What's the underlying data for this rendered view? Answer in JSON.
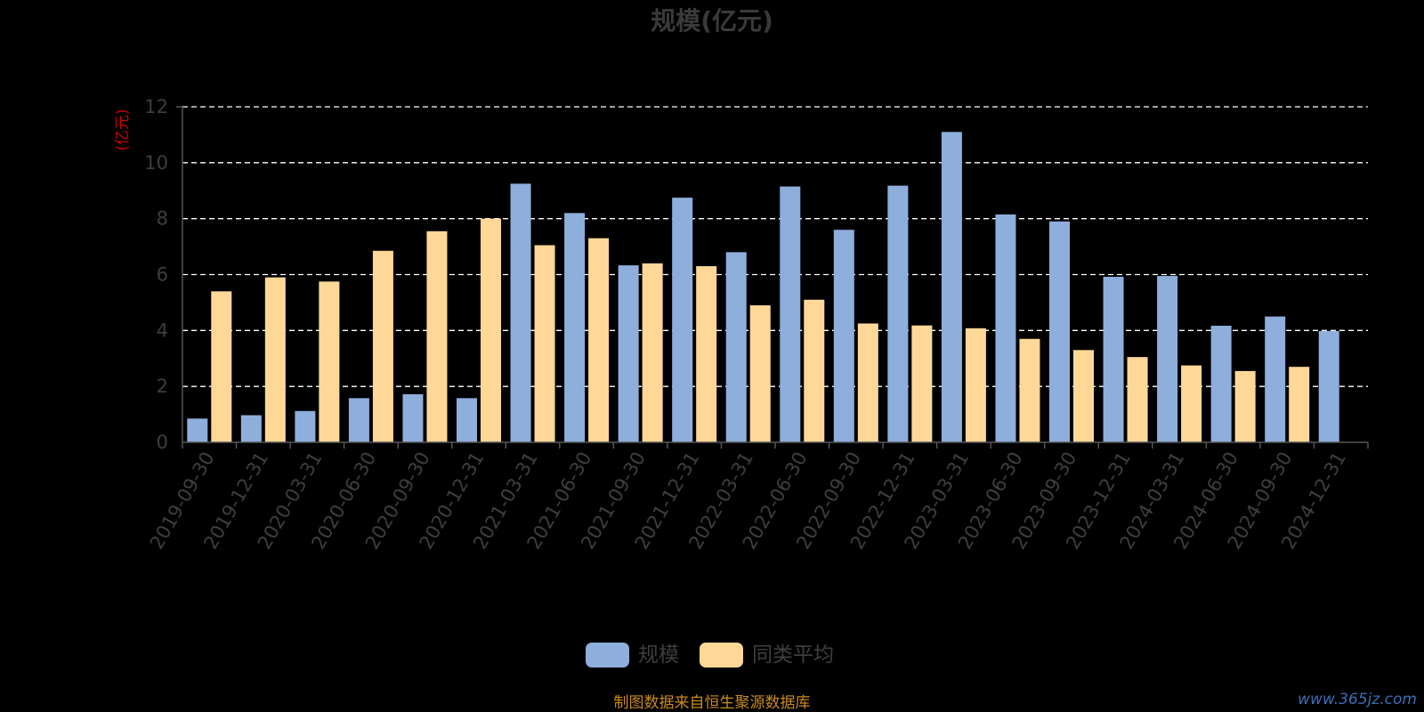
{
  "chart_data": {
    "type": "bar",
    "title": "规模(亿元)",
    "ylabel": "(亿元)",
    "ylim": [
      0,
      12
    ],
    "yticks": [
      0,
      2,
      4,
      6,
      8,
      10,
      12
    ],
    "grid": true,
    "legend_position": "bottom-center",
    "categories": [
      "2019-09-30",
      "2019-12-31",
      "2020-03-31",
      "2020-06-30",
      "2020-09-30",
      "2020-12-31",
      "2021-03-31",
      "2021-06-30",
      "2021-09-30",
      "2021-12-31",
      "2022-03-31",
      "2022-06-30",
      "2022-09-30",
      "2022-12-31",
      "2023-03-31",
      "2023-06-30",
      "2023-09-30",
      "2023-12-31",
      "2024-03-31",
      "2024-06-30",
      "2024-09-30",
      "2024-12-31"
    ],
    "series": [
      {
        "name": "规模",
        "color": "#8eaedc",
        "values": [
          0.85,
          0.97,
          1.12,
          1.58,
          1.72,
          1.58,
          9.25,
          8.2,
          6.33,
          8.75,
          6.8,
          9.15,
          7.6,
          9.18,
          11.1,
          8.15,
          7.9,
          5.92,
          5.95,
          4.17,
          4.5,
          3.98
        ]
      },
      {
        "name": "同类平均",
        "color": "#ffd898",
        "values": [
          5.4,
          5.9,
          5.75,
          6.85,
          7.55,
          8.0,
          7.05,
          7.3,
          6.4,
          6.3,
          4.9,
          5.1,
          4.25,
          4.18,
          4.08,
          3.7,
          3.3,
          3.05,
          2.75,
          2.55,
          2.7,
          null
        ]
      }
    ]
  },
  "footer": {
    "source": "制图数据来自恒生聚源数据库",
    "watermark": "www.365jz.com"
  },
  "colors": {
    "background": "#000000",
    "grid": "#ffffff",
    "axis": "#555555"
  }
}
